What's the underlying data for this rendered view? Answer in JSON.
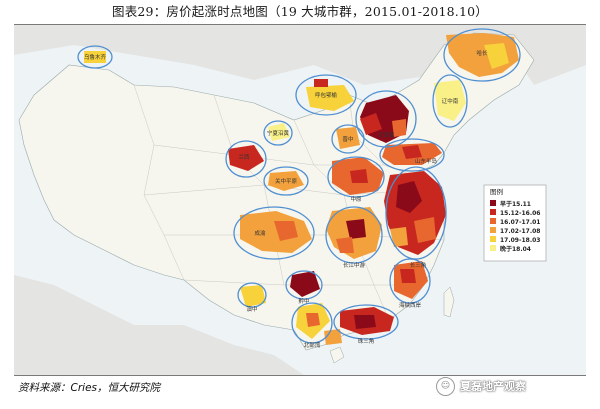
{
  "title": "图表29：房价起涨时点地图（19 大城市群，2015.01-2018.10）",
  "source": "资料来源：Cries，恒大研究院",
  "watermark": "夏磊地产观察",
  "legend": {
    "title": "图例",
    "items": [
      {
        "label": "早于15.11",
        "color": "#8b0a1a"
      },
      {
        "label": "15.12-16.06",
        "color": "#c8271f"
      },
      {
        "label": "16.07-17.01",
        "color": "#e8672e"
      },
      {
        "label": "17.02-17.08",
        "color": "#f2a13c"
      },
      {
        "label": "17.09-18.03",
        "color": "#f7d23a"
      },
      {
        "label": "晚于18.04",
        "color": "#f9f088"
      }
    ]
  },
  "city_clusters": [
    {
      "name": "乌鲁木齐"
    },
    {
      "name": "哈长"
    },
    {
      "name": "呼包鄂榆"
    },
    {
      "name": "辽中南"
    },
    {
      "name": "京津冀"
    },
    {
      "name": "山东半岛"
    },
    {
      "name": "晋中"
    },
    {
      "name": "宁夏沿黄"
    },
    {
      "name": "兰西"
    },
    {
      "name": "关中平原"
    },
    {
      "name": "中原"
    },
    {
      "name": "长三角"
    },
    {
      "name": "成渝"
    },
    {
      "name": "长江中游"
    },
    {
      "name": "海峡西岸"
    },
    {
      "name": "黔中"
    },
    {
      "name": "滇中"
    },
    {
      "name": "北部湾"
    },
    {
      "name": "珠三角"
    }
  ]
}
